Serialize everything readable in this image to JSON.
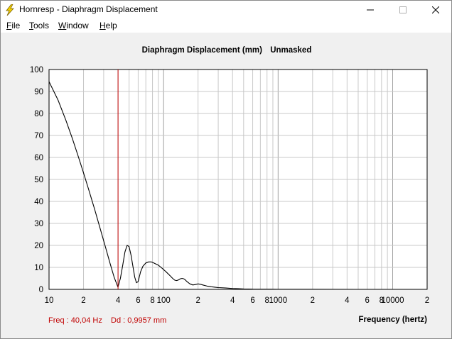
{
  "window": {
    "title": "Hornresp - Diaphragm Displacement",
    "controls": {
      "minimize": "—",
      "maximize": "☐",
      "close": "✕"
    }
  },
  "menu": [
    "File",
    "Tools",
    "Window",
    "Help"
  ],
  "chart_header": {
    "title": "Diaphragm Displacement (mm)",
    "mask": "Unmasked"
  },
  "readout": {
    "freq": "Freq : 40,04 Hz",
    "dd": "Dd : 0,9957 mm"
  },
  "colors": {
    "marker": "#c00000",
    "curve": "#000000",
    "grid": "#c8c8c8",
    "grid_major": "#a0a0a0"
  },
  "chart_data": {
    "type": "line",
    "title": "Diaphragm Displacement (mm)",
    "xlabel": "Frequency (hertz)",
    "ylabel": "",
    "xscale": "log",
    "xlim": [
      10,
      20000
    ],
    "ylim": [
      0,
      100
    ],
    "yticks": [
      0,
      10,
      20,
      30,
      40,
      50,
      60,
      70,
      80,
      90,
      100
    ],
    "xtick_labels": [
      {
        "x": 10,
        "label": "10"
      },
      {
        "x": 20,
        "label": "2"
      },
      {
        "x": 40,
        "label": "4"
      },
      {
        "x": 60,
        "label": "6"
      },
      {
        "x": 80,
        "label": "8"
      },
      {
        "x": 100,
        "label": "100"
      },
      {
        "x": 200,
        "label": "2"
      },
      {
        "x": 400,
        "label": "4"
      },
      {
        "x": 600,
        "label": "6"
      },
      {
        "x": 800,
        "label": "8"
      },
      {
        "x": 1000,
        "label": "1000"
      },
      {
        "x": 2000,
        "label": "2"
      },
      {
        "x": 4000,
        "label": "4"
      },
      {
        "x": 6000,
        "label": "6"
      },
      {
        "x": 8000,
        "label": "8"
      },
      {
        "x": 10000,
        "label": "10000"
      },
      {
        "x": 20000,
        "label": "2"
      }
    ],
    "grid": true,
    "marker_x": 40.04,
    "series": [
      {
        "x": [
          10,
          12,
          14,
          16,
          18,
          20,
          22,
          25,
          28,
          31,
          34,
          37,
          40,
          42,
          44,
          46,
          48,
          50,
          52,
          54,
          56,
          58,
          60,
          63,
          66,
          70,
          74,
          78,
          82,
          86,
          90,
          95,
          100,
          105,
          110,
          115,
          120,
          125,
          130,
          135,
          140,
          145,
          150,
          155,
          160,
          170,
          180,
          190,
          200,
          210,
          220,
          240,
          260,
          280,
          300,
          350,
          400,
          450,
          500,
          550,
          600,
          800,
          1000,
          2000,
          5000,
          10000,
          20000
        ],
        "y": [
          94.5,
          86,
          77,
          68.5,
          60.5,
          53,
          46,
          36.5,
          27.5,
          19.5,
          12,
          5.5,
          1,
          5,
          11,
          17,
          20,
          19.5,
          15.5,
          10.5,
          5.5,
          3,
          3.5,
          8,
          10.5,
          12,
          12.5,
          12.5,
          12,
          11.5,
          11,
          10,
          9,
          8,
          7,
          6,
          5,
          4.2,
          4,
          4.3,
          4.8,
          5,
          4.8,
          4.3,
          3.5,
          2.5,
          2,
          2.2,
          2.5,
          2.3,
          2,
          1.5,
          1.2,
          1,
          0.8,
          0.6,
          0.4,
          0.3,
          0.2,
          0.15,
          0.1,
          0.05,
          0.03,
          0.02,
          0.01,
          0.01,
          0
        ]
      }
    ]
  }
}
